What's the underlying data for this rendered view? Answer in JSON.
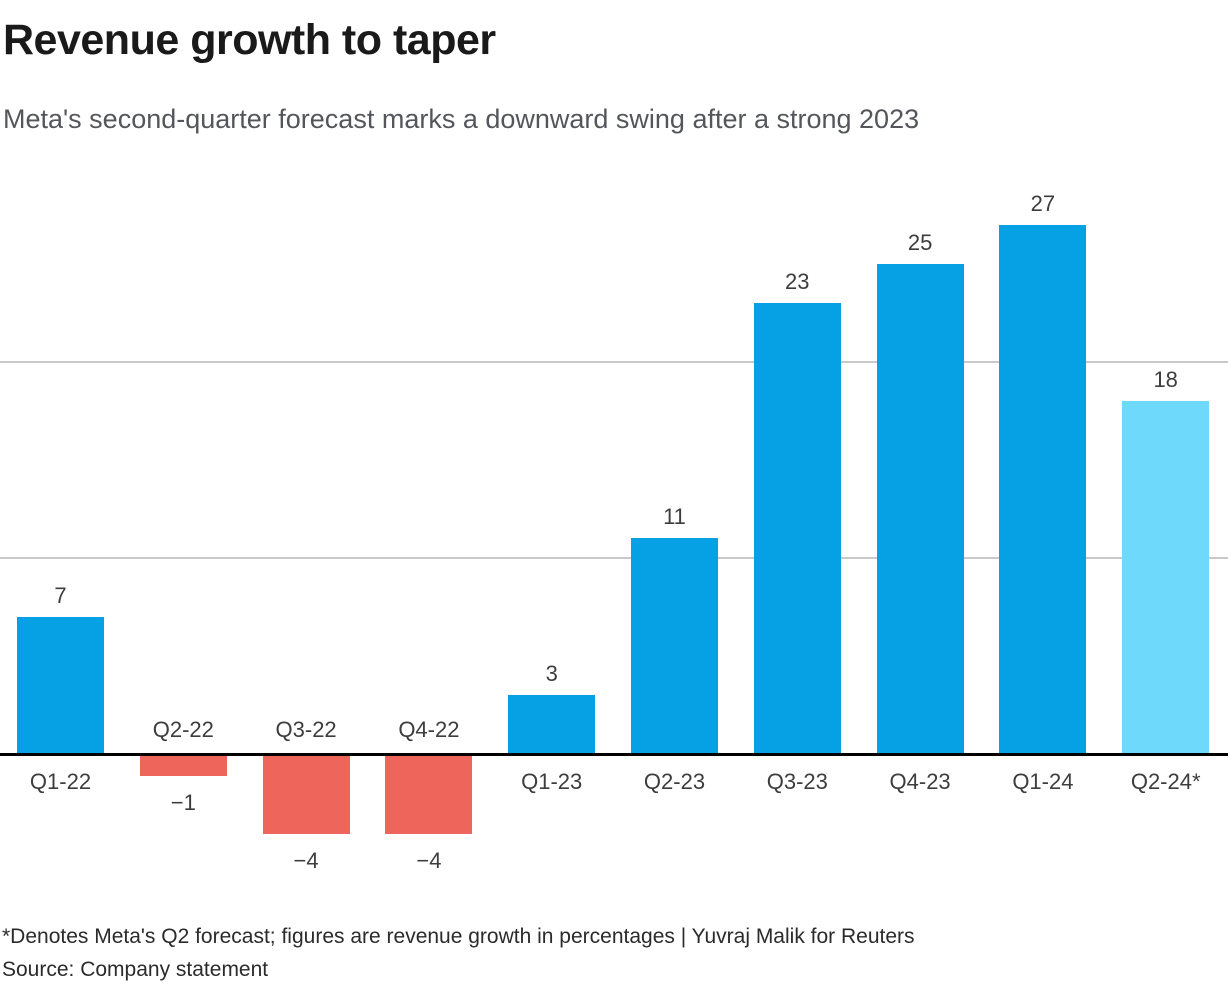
{
  "header": {
    "title": "Revenue growth to taper",
    "subtitle": "Meta's second-quarter forecast marks a downward swing after a strong 2023"
  },
  "footer": {
    "footnote": "*Denotes Meta's Q2 forecast; figures are revenue growth in percentages | Yuvraj Malik for Reuters",
    "source": "Source: Company statement"
  },
  "chart_data": {
    "type": "bar",
    "title": "Revenue growth to taper",
    "subtitle": "Meta's second-quarter forecast marks a downward swing after a strong 2023",
    "unit": "percent",
    "categories": [
      "Q1-22",
      "Q2-22",
      "Q3-22",
      "Q4-22",
      "Q1-23",
      "Q2-23",
      "Q3-23",
      "Q4-23",
      "Q1-24",
      "Q2-24*"
    ],
    "values": [
      7,
      -1,
      -4,
      -4,
      3,
      11,
      23,
      25,
      27,
      18
    ],
    "value_labels": [
      "7",
      "−1",
      "−4",
      "−4",
      "3",
      "11",
      "23",
      "25",
      "27",
      "18"
    ],
    "bar_roles": [
      "positive",
      "negative",
      "negative",
      "negative",
      "positive",
      "positive",
      "positive",
      "positive",
      "positive",
      "forecast"
    ],
    "palette": {
      "positive": "#06A0E4",
      "negative": "#EE655B",
      "forecast": "#6FD9FC"
    },
    "gridlines": [
      10,
      20
    ],
    "grid_color": "#C9C9C9",
    "axis_color": "#000000",
    "label_color": "#3D3D3D",
    "ylim": [
      -6,
      29
    ],
    "legend": "none",
    "xlabel": "",
    "ylabel": "",
    "footnote": "*Denotes Meta's Q2 forecast; figures are revenue growth in percentages | Yuvraj Malik for Reuters",
    "source": "Source: Company statement"
  }
}
